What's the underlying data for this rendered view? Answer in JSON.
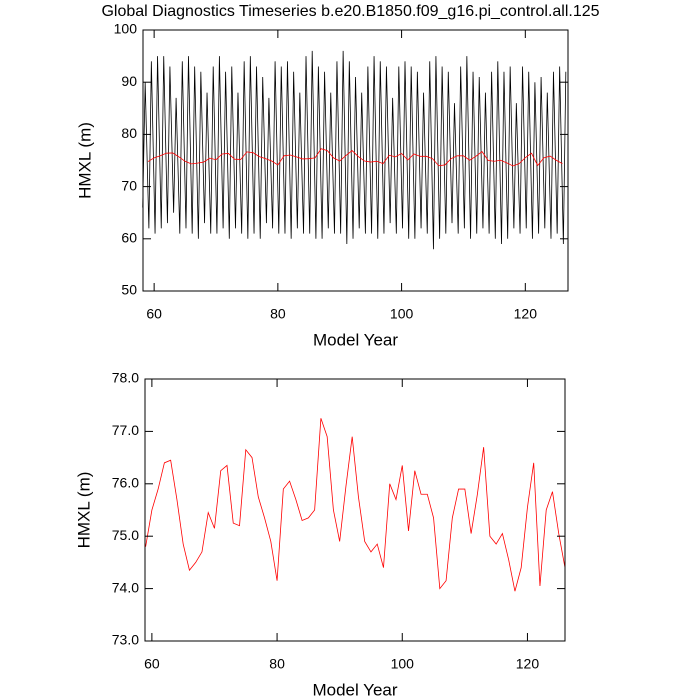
{
  "chart_data": [
    {
      "type": "line",
      "title": "Global Diagnostics Timeseries b.e20.B1850.f09_g16.pi_control.all.125",
      "x_label": "Model Year",
      "y_label": "HMXL (m)",
      "xlim": [
        58.2,
        126.9
      ],
      "xticks": [
        60,
        80,
        100,
        120
      ],
      "ylim": [
        50,
        100
      ],
      "yticks": [
        50,
        60,
        70,
        80,
        90,
        100
      ],
      "series": [
        {
          "color": "#000000",
          "x": [
            58.15,
            58.55,
            59.15,
            59.55,
            60.15,
            60.55,
            61.15,
            61.55,
            62.15,
            62.55,
            63.15,
            63.55,
            64.15,
            64.55,
            65.15,
            65.55,
            66.15,
            66.55,
            67.15,
            67.55,
            68.15,
            68.55,
            69.15,
            69.55,
            70.15,
            70.55,
            71.15,
            71.55,
            72.15,
            72.55,
            73.15,
            73.55,
            74.15,
            74.55,
            75.15,
            75.55,
            76.15,
            76.55,
            77.15,
            77.55,
            78.15,
            78.55,
            79.15,
            79.55,
            80.15,
            80.55,
            81.15,
            81.55,
            82.15,
            82.55,
            83.15,
            83.55,
            84.15,
            84.55,
            85.15,
            85.55,
            86.15,
            86.55,
            87.15,
            87.55,
            88.15,
            88.55,
            89.15,
            89.55,
            90.15,
            90.55,
            91.15,
            91.55,
            92.15,
            92.55,
            93.15,
            93.55,
            94.15,
            94.55,
            95.15,
            95.55,
            96.15,
            96.55,
            97.15,
            97.55,
            98.15,
            98.55,
            99.15,
            99.55,
            100.15,
            100.55,
            101.15,
            101.55,
            102.15,
            102.55,
            103.15,
            103.55,
            104.15,
            104.55,
            105.15,
            105.55,
            106.15,
            106.55,
            107.15,
            107.55,
            108.15,
            108.55,
            109.15,
            109.55,
            110.15,
            110.55,
            111.15,
            111.55,
            112.15,
            112.55,
            113.15,
            113.55,
            114.15,
            114.55,
            115.15,
            115.55,
            116.15,
            116.55,
            117.15,
            117.55,
            118.15,
            118.55,
            119.15,
            119.55,
            120.15,
            120.55,
            121.15,
            121.55,
            122.15,
            122.55,
            123.15,
            123.55,
            124.15,
            124.55,
            125.15,
            125.55,
            126.15,
            126.55
          ],
          "values": [
            66,
            90,
            62,
            94,
            61,
            95,
            62,
            95,
            63,
            93,
            65,
            87,
            61,
            94,
            62,
            95,
            61,
            93,
            60,
            92,
            63,
            88,
            61,
            93,
            61,
            95,
            62,
            92,
            60,
            93,
            62,
            88,
            61,
            94,
            60,
            95,
            61,
            93,
            60,
            91,
            63,
            87,
            62,
            94,
            61,
            93,
            61,
            94,
            60,
            92,
            62,
            88,
            61,
            95,
            61,
            96,
            60,
            93,
            60,
            92,
            62,
            88,
            61,
            94,
            61,
            96,
            59,
            94,
            60,
            91,
            62,
            88,
            61,
            93,
            61,
            95,
            60,
            94,
            61,
            93,
            63,
            87,
            61,
            93,
            62,
            94,
            60,
            93,
            60,
            92,
            62,
            88,
            61,
            94,
            58,
            95,
            60,
            93,
            61,
            92,
            63,
            86,
            61,
            93,
            62,
            95,
            60,
            92,
            61,
            91,
            62,
            88,
            61,
            92,
            60,
            94,
            59,
            92,
            60,
            93,
            62,
            86,
            61,
            93,
            62,
            92,
            60,
            90,
            61,
            91,
            62,
            88,
            60,
            92,
            61,
            93,
            59,
            92
          ]
        },
        {
          "color": "#ff0000",
          "x": [
            59,
            60,
            61,
            62,
            63,
            64,
            65,
            66,
            67,
            68,
            69,
            70,
            71,
            72,
            73,
            74,
            75,
            76,
            77,
            78,
            79,
            80,
            81,
            82,
            83,
            84,
            85,
            86,
            87,
            88,
            89,
            90,
            91,
            92,
            93,
            94,
            95,
            96,
            97,
            98,
            99,
            100,
            101,
            102,
            103,
            104,
            105,
            106,
            107,
            108,
            109,
            110,
            111,
            112,
            113,
            114,
            115,
            116,
            117,
            118,
            119,
            120,
            121,
            122,
            123,
            124,
            125,
            126
          ],
          "values": [
            74.8,
            75.5,
            75.9,
            76.4,
            76.45,
            75.7,
            74.85,
            74.35,
            74.5,
            74.7,
            75.45,
            75.15,
            76.25,
            76.35,
            75.25,
            75.2,
            76.65,
            76.5,
            75.75,
            75.35,
            74.9,
            74.15,
            75.9,
            76.05,
            75.7,
            75.3,
            75.35,
            75.5,
            77.25,
            76.9,
            75.5,
            74.9,
            75.95,
            76.9,
            75.75,
            74.9,
            74.7,
            74.85,
            74.4,
            76.0,
            75.7,
            76.35,
            75.1,
            76.25,
            75.8,
            75.8,
            75.35,
            74.0,
            74.15,
            75.35,
            75.9,
            75.9,
            75.05,
            75.8,
            76.7,
            75.0,
            74.85,
            75.05,
            74.55,
            73.95,
            74.4,
            75.55,
            76.4,
            74.05,
            75.5,
            75.85,
            75.05,
            74.4
          ]
        }
      ]
    },
    {
      "type": "line",
      "x_label": "Model Year",
      "y_label": "HMXL (m)",
      "xlim": [
        58.9,
        126
      ],
      "xticks": [
        60,
        80,
        100,
        120
      ],
      "ylim": [
        73,
        78
      ],
      "yticks": [
        {
          "value": 73,
          "label": "73.0"
        },
        {
          "value": 74,
          "label": "74.0"
        },
        {
          "value": 75,
          "label": "75.0"
        },
        {
          "value": 76,
          "label": "76.0"
        },
        {
          "value": 77,
          "label": "77.0"
        },
        {
          "value": 78,
          "label": "78.0"
        }
      ],
      "series": [
        {
          "color": "#ff0000",
          "x": [
            59,
            60,
            61,
            62,
            63,
            64,
            65,
            66,
            67,
            68,
            69,
            70,
            71,
            72,
            73,
            74,
            75,
            76,
            77,
            78,
            79,
            80,
            81,
            82,
            83,
            84,
            85,
            86,
            87,
            88,
            89,
            90,
            91,
            92,
            93,
            94,
            95,
            96,
            97,
            98,
            99,
            100,
            101,
            102,
            103,
            104,
            105,
            106,
            107,
            108,
            109,
            110,
            111,
            112,
            113,
            114,
            115,
            116,
            117,
            118,
            119,
            120,
            121,
            122,
            123,
            124,
            125,
            126
          ],
          "values": [
            74.8,
            75.5,
            75.9,
            76.4,
            76.45,
            75.7,
            74.85,
            74.35,
            74.5,
            74.7,
            75.45,
            75.15,
            76.25,
            76.35,
            75.25,
            75.2,
            76.65,
            76.5,
            75.75,
            75.35,
            74.9,
            74.15,
            75.9,
            76.05,
            75.7,
            75.3,
            75.35,
            75.5,
            77.25,
            76.9,
            75.5,
            74.9,
            75.95,
            76.9,
            75.75,
            74.9,
            74.7,
            74.85,
            74.4,
            76.0,
            75.7,
            76.35,
            75.1,
            76.25,
            75.8,
            75.8,
            75.35,
            74.0,
            74.15,
            75.35,
            75.9,
            75.9,
            75.05,
            75.8,
            76.7,
            75.0,
            74.85,
            75.05,
            74.55,
            73.95,
            74.4,
            75.55,
            76.4,
            74.05,
            75.5,
            75.85,
            75.05,
            74.4
          ]
        }
      ]
    }
  ]
}
